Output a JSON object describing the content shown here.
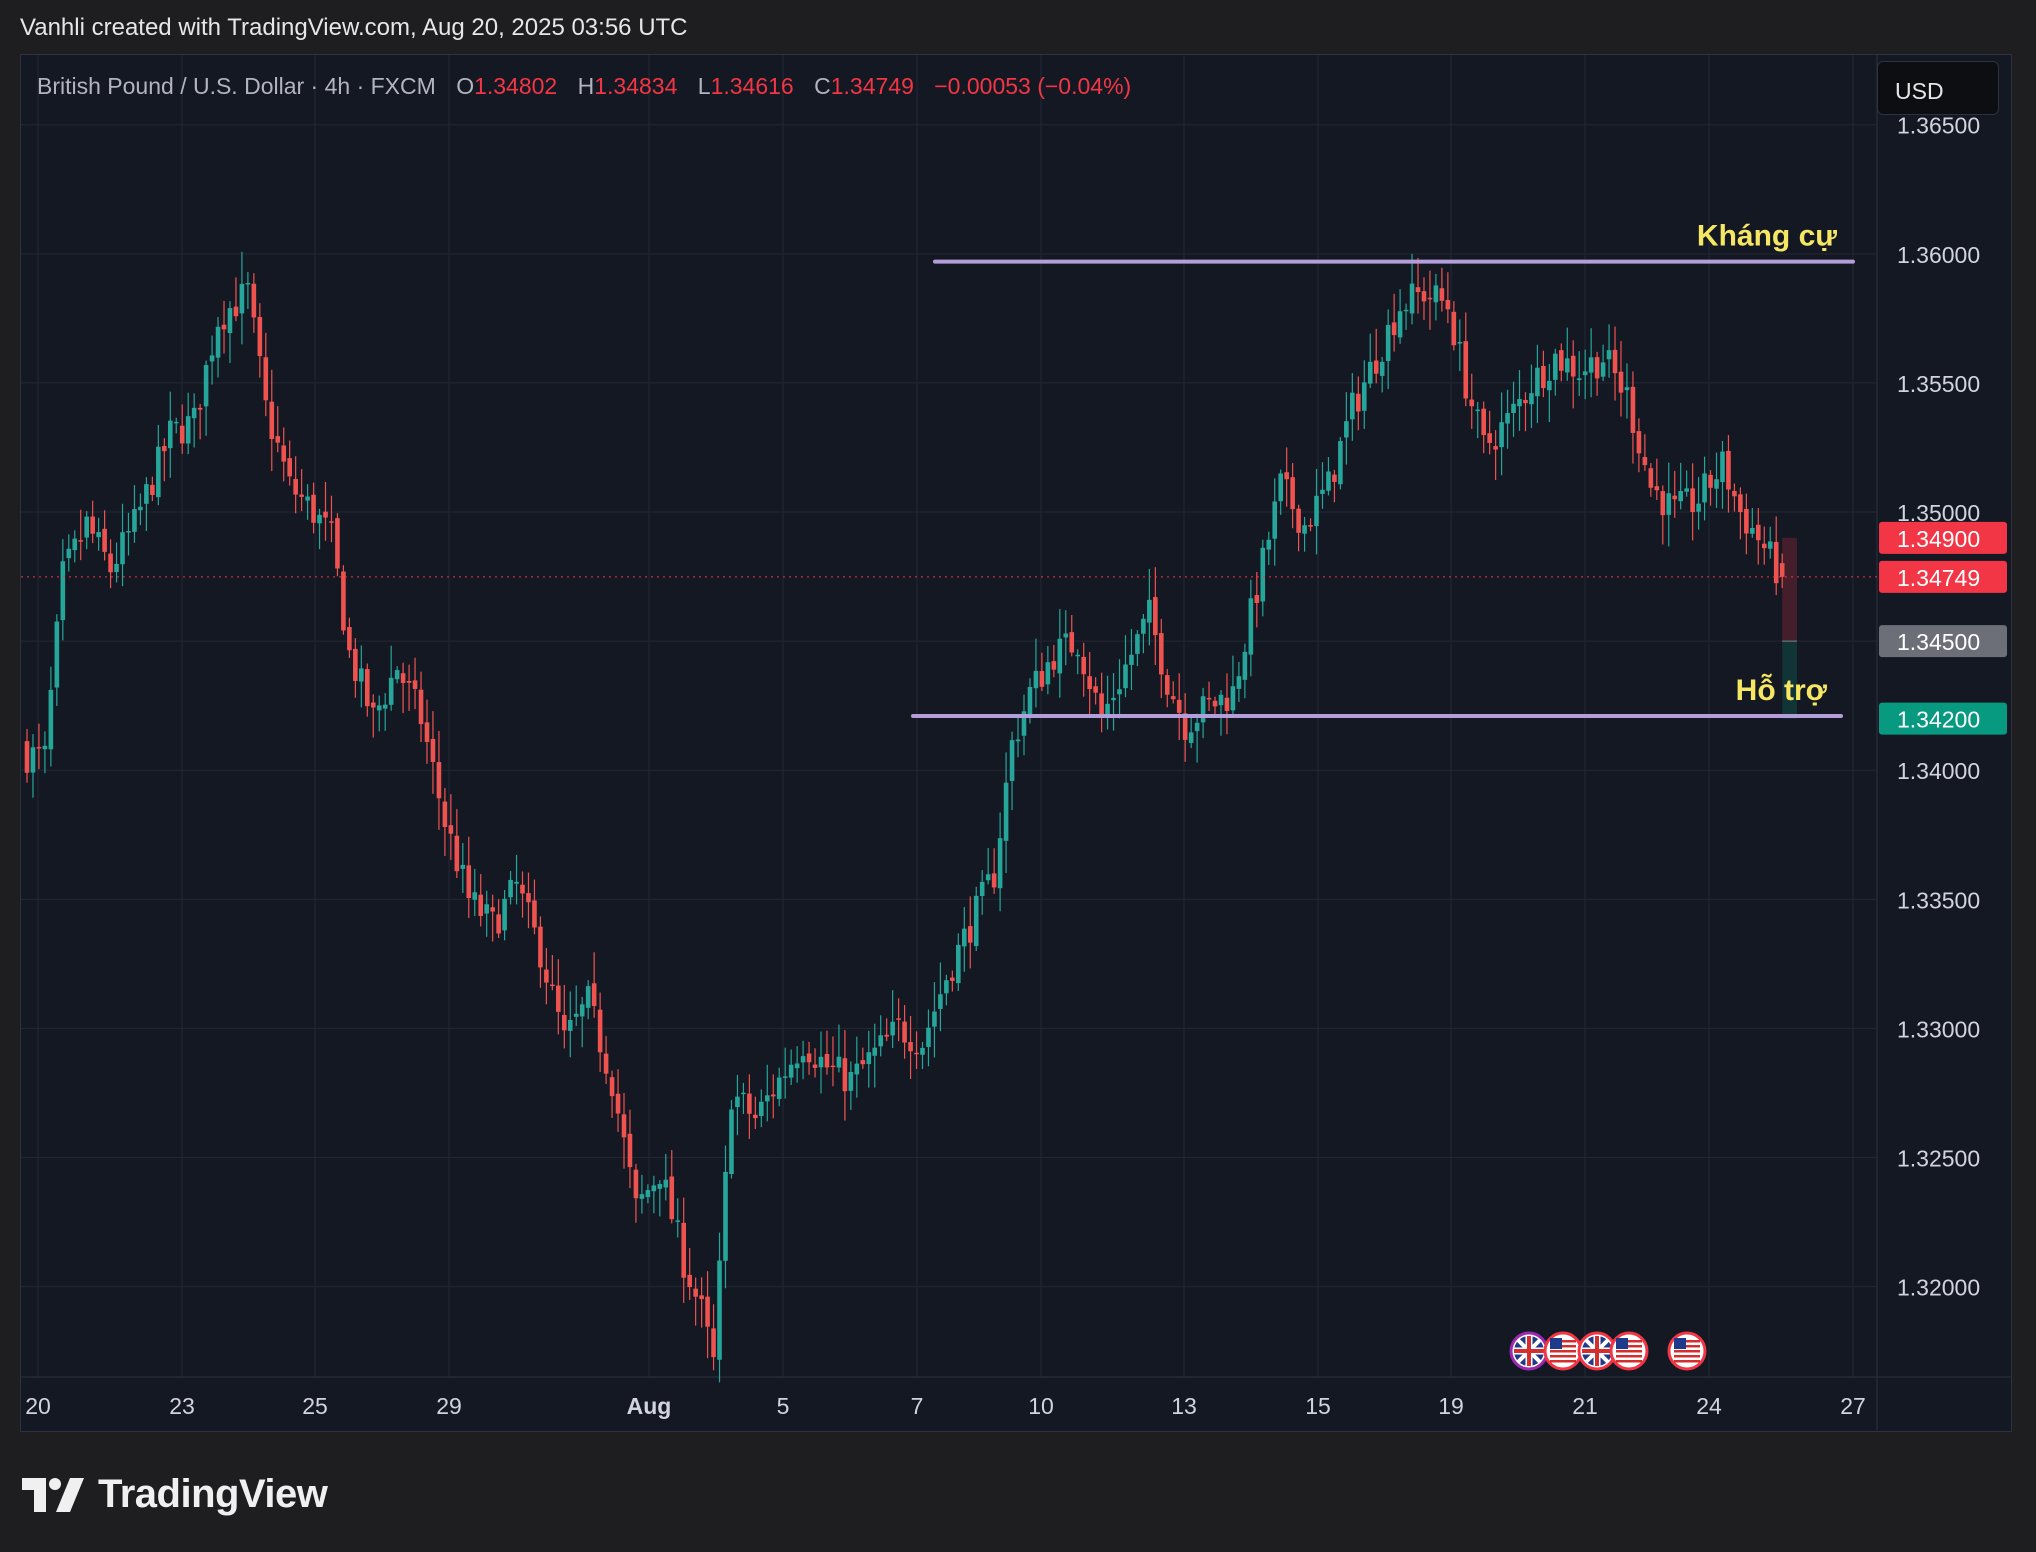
{
  "attribution": "Vanhli created with TradingView.com, Aug 20, 2025 03:56 UTC",
  "legend": {
    "symbol": "British Pound / U.S. Dollar · 4h · FXCM",
    "open_label": "O",
    "open": "1.34802",
    "high_label": "H",
    "high": "1.34834",
    "low_label": "L",
    "low": "1.34616",
    "close_label": "C",
    "close": "1.34749",
    "change": "−0.00053 (−0.04%)"
  },
  "currency_button": "USD",
  "brand": {
    "name": "TradingView",
    "logo_icon": "tradingview-logo-icon"
  },
  "colors": {
    "up": "#26a69a",
    "down": "#ef5350",
    "level": "#b39ddb",
    "label": "#f5e663",
    "background": "#141823"
  },
  "chart_data": {
    "type": "candlestick",
    "price_range": [
      1.3165,
      1.3677
    ],
    "y_ticks": [
      "1.36500",
      "1.36000",
      "1.35500",
      "1.35000",
      "1.34500",
      "1.34000",
      "1.33500",
      "1.33000",
      "1.32500",
      "1.32000"
    ],
    "x_ticks": [
      "20",
      "23",
      "25",
      "29",
      "Aug",
      "5",
      "7",
      "10",
      "13",
      "15",
      "19",
      "21",
      "24",
      "27"
    ],
    "price_tags": [
      {
        "label": "1.34900",
        "value": 1.349,
        "color": "#f23645"
      },
      {
        "label": "1.34749",
        "value": 1.34749,
        "color": "#f23645"
      },
      {
        "label": "1.34500",
        "value": 1.345,
        "color": "#6d6f78"
      },
      {
        "label": "1.34200",
        "value": 1.342,
        "color": "#089981"
      }
    ],
    "current_price": 1.34749,
    "annotations": [
      {
        "text": "Kháng cự",
        "level": 1.3597
      },
      {
        "text": "Hỗ trợ",
        "level": 1.3421
      }
    ],
    "position_box": {
      "entry": 1.34749,
      "stop": 1.349,
      "target1": 1.345,
      "target2": 1.342
    },
    "event_icons": [
      "uk-flag-icon",
      "us-flag-icon",
      "uk-flag-icon",
      "us-flag-icon",
      "us-flag-icon"
    ],
    "waypoints": [
      [
        0,
        1.3406
      ],
      [
        3,
        1.3405
      ],
      [
        6,
        1.3475
      ],
      [
        10,
        1.3495
      ],
      [
        14,
        1.3478
      ],
      [
        18,
        1.3495
      ],
      [
        24,
        1.353
      ],
      [
        28,
        1.3535
      ],
      [
        32,
        1.3575
      ],
      [
        37,
        1.3585
      ],
      [
        40,
        1.354
      ],
      [
        44,
        1.351
      ],
      [
        48,
        1.35
      ],
      [
        51,
        1.349
      ],
      [
        54,
        1.3445
      ],
      [
        58,
        1.342
      ],
      [
        62,
        1.344
      ],
      [
        66,
        1.342
      ],
      [
        70,
        1.338
      ],
      [
        74,
        1.335
      ],
      [
        78,
        1.334
      ],
      [
        82,
        1.3355
      ],
      [
        86,
        1.333
      ],
      [
        90,
        1.3295
      ],
      [
        94,
        1.331
      ],
      [
        98,
        1.328
      ],
      [
        102,
        1.323
      ],
      [
        106,
        1.3245
      ],
      [
        110,
        1.321
      ],
      [
        113,
        1.319
      ],
      [
        115,
        1.317
      ],
      [
        118,
        1.3275
      ],
      [
        122,
        1.3265
      ],
      [
        126,
        1.328
      ],
      [
        130,
        1.3295
      ],
      [
        134,
        1.3285
      ],
      [
        138,
        1.328
      ],
      [
        142,
        1.329
      ],
      [
        146,
        1.33
      ],
      [
        150,
        1.3295
      ],
      [
        154,
        1.332
      ],
      [
        158,
        1.334
      ],
      [
        162,
        1.336
      ],
      [
        165,
        1.341
      ],
      [
        168,
        1.343
      ],
      [
        172,
        1.3445
      ],
      [
        176,
        1.345
      ],
      [
        180,
        1.342
      ],
      [
        184,
        1.344
      ],
      [
        188,
        1.346
      ],
      [
        191,
        1.3435
      ],
      [
        194,
        1.3418
      ],
      [
        198,
        1.3425
      ],
      [
        202,
        1.343
      ],
      [
        206,
        1.347
      ],
      [
        210,
        1.351
      ],
      [
        214,
        1.3495
      ],
      [
        218,
        1.351
      ],
      [
        222,
        1.354
      ],
      [
        226,
        1.356
      ],
      [
        230,
        1.358
      ],
      [
        234,
        1.3585
      ],
      [
        238,
        1.358
      ],
      [
        241,
        1.355
      ],
      [
        244,
        1.3525
      ],
      [
        248,
        1.3535
      ],
      [
        252,
        1.355
      ],
      [
        256,
        1.356
      ],
      [
        260,
        1.3555
      ],
      [
        264,
        1.356
      ],
      [
        268,
        1.3545
      ],
      [
        272,
        1.351
      ],
      [
        276,
        1.35
      ],
      [
        280,
        1.3505
      ],
      [
        284,
        1.3518
      ],
      [
        287,
        1.35
      ],
      [
        290,
        1.349
      ],
      [
        293,
        1.3478
      ],
      [
        294,
        1.34749
      ]
    ]
  }
}
